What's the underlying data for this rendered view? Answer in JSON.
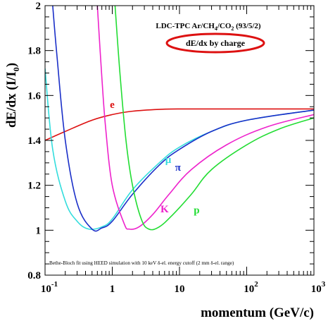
{
  "chart_data": {
    "type": "line",
    "title": "LDC-TPC Ar/CH4/CO2 (93/5/2)",
    "title_parts": [
      "LDC-TPC Ar/CH",
      "4",
      "/CO",
      "2",
      " (93/5/2)"
    ],
    "subtitle": "dE/dx by charge",
    "ylabel_parts": [
      "dE/dx (I/I",
      "0",
      ")"
    ],
    "xlabel": "momentum (GeV/c)",
    "note": "Bethe-Bloch fit using HEED simulation with 10 keV δ-el. energy cutoff (2 mm δ-el. range)",
    "x_scale": "log",
    "xlim": [
      0.1,
      1000
    ],
    "ylim": [
      0.8,
      2.0
    ],
    "x_ticks": [
      {
        "value": 0.1,
        "base": "10",
        "exp": "-1"
      },
      {
        "value": 1,
        "base": "1",
        "exp": ""
      },
      {
        "value": 10,
        "base": "10",
        "exp": ""
      },
      {
        "value": 100,
        "base": "10",
        "exp": "2"
      },
      {
        "value": 1000,
        "base": "10",
        "exp": "3"
      }
    ],
    "y_ticks": [
      {
        "value": 0.8,
        "label": "0.8"
      },
      {
        "value": 1.0,
        "label": "1"
      },
      {
        "value": 1.2,
        "label": "1.2"
      },
      {
        "value": 1.4,
        "label": "1.4"
      },
      {
        "value": 1.6,
        "label": "1.6"
      },
      {
        "value": 1.8,
        "label": "1.8"
      },
      {
        "value": 2.0,
        "label": "2"
      }
    ],
    "grid": false,
    "series": [
      {
        "name": "e",
        "color": "#dd1111",
        "x": [
          0.1,
          0.2,
          0.5,
          1,
          2,
          5,
          10,
          100,
          1000
        ],
        "y": [
          1.4,
          1.44,
          1.49,
          1.515,
          1.53,
          1.538,
          1.54,
          1.54,
          1.54
        ]
      },
      {
        "name": "μ",
        "color": "#33dddd",
        "x": [
          0.1,
          0.13,
          0.2,
          0.3,
          0.45,
          0.7,
          1,
          2,
          5,
          10,
          30,
          100,
          1000
        ],
        "y": [
          1.72,
          1.36,
          1.13,
          1.04,
          1.005,
          1.015,
          1.05,
          1.18,
          1.3,
          1.37,
          1.44,
          1.49,
          1.535
        ]
      },
      {
        "name": "π",
        "color": "#1a2fc8",
        "x": [
          0.13,
          0.15,
          0.2,
          0.3,
          0.5,
          0.7,
          1,
          2,
          5,
          10,
          30,
          100,
          1000
        ],
        "y": [
          2.0,
          1.78,
          1.4,
          1.12,
          1.005,
          1.01,
          1.04,
          1.16,
          1.29,
          1.36,
          1.44,
          1.49,
          1.535
        ]
      },
      {
        "name": "K",
        "color": "#ee22cc",
        "x": [
          0.6,
          0.7,
          0.8,
          1,
          1.5,
          1.8,
          2.5,
          4,
          7,
          15,
          50,
          200,
          1000
        ],
        "y": [
          2.0,
          1.68,
          1.45,
          1.2,
          1.03,
          1.005,
          1.015,
          1.07,
          1.16,
          1.27,
          1.38,
          1.46,
          1.515
        ]
      },
      {
        "name": "p",
        "color": "#22dd33",
        "x": [
          1.1,
          1.3,
          1.6,
          2,
          2.7,
          3.5,
          5,
          8,
          15,
          30,
          100,
          300,
          1000
        ],
        "y": [
          2.0,
          1.7,
          1.4,
          1.2,
          1.05,
          1.005,
          1.015,
          1.07,
          1.16,
          1.27,
          1.38,
          1.45,
          1.5
        ]
      }
    ],
    "series_labels": [
      {
        "text": "e",
        "color": "#dd1111",
        "x": 1.0,
        "y": 1.545
      },
      {
        "text": "μ",
        "color": "#33dddd",
        "x": 6.8,
        "y": 1.3
      },
      {
        "text": "π",
        "color": "#1a2fc8",
        "x": 9.5,
        "y": 1.265
      },
      {
        "text": "K",
        "color": "#ee22cc",
        "x": 6.0,
        "y": 1.08
      },
      {
        "text": "p",
        "color": "#22dd33",
        "x": 18.0,
        "y": 1.075
      }
    ],
    "highlight_color": "#dd1111"
  }
}
